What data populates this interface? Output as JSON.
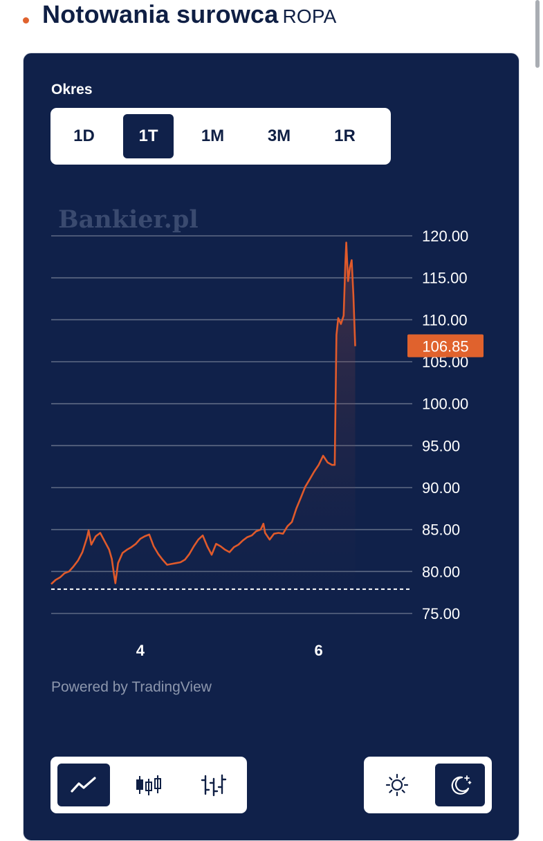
{
  "header": {
    "title": "Notowania surowca",
    "symbol": "ROPA"
  },
  "period": {
    "label": "Okres",
    "options": [
      "1D",
      "1T",
      "1M",
      "3M",
      "1R"
    ],
    "selected": "1T"
  },
  "chart_data": {
    "type": "area",
    "watermark": "Bankier.pl",
    "y_ticks": [
      "120.00",
      "115.00",
      "110.00",
      "105.00",
      "100.00",
      "95.00",
      "90.00",
      "85.00",
      "80.00",
      "75.00"
    ],
    "ylim": [
      75,
      120
    ],
    "x_ticks": [
      {
        "label": "4",
        "x": 2.2
      },
      {
        "label": "6",
        "x": 4.2
      }
    ],
    "x_range": [
      1.2,
      5.25
    ],
    "last_price": "106.85",
    "reference_line": 77.9,
    "grid": true,
    "series": [
      {
        "color": "#e05a2b",
        "points": [
          [
            1.2,
            78.5
          ],
          [
            1.25,
            79.0
          ],
          [
            1.3,
            79.3
          ],
          [
            1.35,
            79.8
          ],
          [
            1.4,
            80.0
          ],
          [
            1.45,
            80.6
          ],
          [
            1.5,
            81.3
          ],
          [
            1.55,
            82.3
          ],
          [
            1.6,
            84.0
          ],
          [
            1.62,
            84.9
          ],
          [
            1.65,
            83.2
          ],
          [
            1.7,
            84.2
          ],
          [
            1.75,
            84.6
          ],
          [
            1.8,
            83.6
          ],
          [
            1.85,
            82.6
          ],
          [
            1.88,
            81.5
          ],
          [
            1.9,
            80.0
          ],
          [
            1.92,
            78.6
          ],
          [
            1.95,
            81.0
          ],
          [
            2.0,
            82.2
          ],
          [
            2.05,
            82.6
          ],
          [
            2.1,
            82.9
          ],
          [
            2.15,
            83.3
          ],
          [
            2.2,
            83.9
          ],
          [
            2.25,
            84.2
          ],
          [
            2.3,
            84.4
          ],
          [
            2.35,
            83.0
          ],
          [
            2.4,
            82.1
          ],
          [
            2.45,
            81.4
          ],
          [
            2.5,
            80.8
          ],
          [
            2.55,
            80.9
          ],
          [
            2.6,
            81.0
          ],
          [
            2.65,
            81.1
          ],
          [
            2.7,
            81.4
          ],
          [
            2.75,
            82.1
          ],
          [
            2.8,
            83.0
          ],
          [
            2.85,
            83.8
          ],
          [
            2.9,
            84.3
          ],
          [
            2.95,
            83.0
          ],
          [
            3.0,
            82.0
          ],
          [
            3.05,
            83.3
          ],
          [
            3.1,
            83.0
          ],
          [
            3.15,
            82.6
          ],
          [
            3.2,
            82.3
          ],
          [
            3.25,
            82.9
          ],
          [
            3.3,
            83.2
          ],
          [
            3.35,
            83.7
          ],
          [
            3.4,
            84.1
          ],
          [
            3.45,
            84.3
          ],
          [
            3.5,
            84.8
          ],
          [
            3.55,
            85.0
          ],
          [
            3.58,
            85.7
          ],
          [
            3.6,
            84.6
          ],
          [
            3.65,
            83.8
          ],
          [
            3.7,
            84.5
          ],
          [
            3.75,
            84.6
          ],
          [
            3.8,
            84.5
          ],
          [
            3.85,
            85.4
          ],
          [
            3.9,
            85.9
          ],
          [
            3.95,
            87.5
          ],
          [
            4.0,
            88.8
          ],
          [
            4.05,
            90.1
          ],
          [
            4.1,
            91.0
          ],
          [
            4.15,
            91.9
          ],
          [
            4.2,
            92.7
          ],
          [
            4.25,
            93.8
          ],
          [
            4.3,
            93.0
          ],
          [
            4.35,
            92.7
          ],
          [
            4.38,
            92.7
          ],
          [
            4.4,
            108.2
          ],
          [
            4.42,
            110.2
          ],
          [
            4.45,
            109.5
          ],
          [
            4.48,
            110.5
          ],
          [
            4.5,
            116.8
          ],
          [
            4.51,
            119.2
          ],
          [
            4.53,
            114.6
          ],
          [
            4.55,
            116.2
          ],
          [
            4.57,
            117.1
          ],
          [
            4.59,
            112.9
          ],
          [
            4.61,
            106.85
          ]
        ]
      }
    ]
  },
  "footer": {
    "powered_by": "Powered by TradingView"
  },
  "chart_styles": [
    {
      "name": "line-chart-icon",
      "active": true
    },
    {
      "name": "candles-chart-icon",
      "active": false
    },
    {
      "name": "bars-chart-icon",
      "active": false
    }
  ],
  "themes": [
    {
      "name": "sun-icon",
      "active": false
    },
    {
      "name": "moon-icon",
      "active": true
    }
  ],
  "colors": {
    "panel": "#10214a",
    "accent": "#e0622d",
    "grid": "#5f6b85",
    "price_line": "#e05a2b"
  }
}
